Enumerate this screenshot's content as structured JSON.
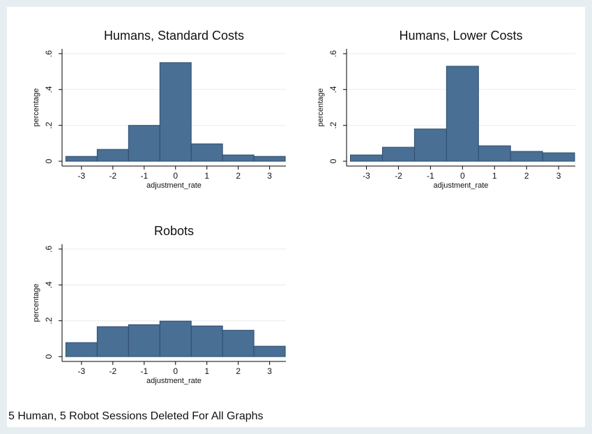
{
  "chart_data": [
    {
      "type": "histogram",
      "title": "Humans, Standard Costs",
      "xlabel": "adjustment_rate",
      "ylabel": "percentage",
      "bins": [
        -3.5,
        -2.5,
        -1.5,
        -0.5,
        0.5,
        1.5,
        2.5,
        3.5
      ],
      "counts": [
        0.027,
        0.066,
        0.2,
        0.55,
        0.097,
        0.035,
        0.027
      ],
      "color": "#4a6f94",
      "edgecolor": "#2c4c6e",
      "xlim": [
        -3.62,
        3.52
      ],
      "xticks": [
        -3,
        -2,
        -1,
        0,
        1,
        2,
        3
      ],
      "ylim": [
        -0.027,
        0.627
      ],
      "yticks": [
        0,
        {
          "value": 0.2,
          "label": ".2"
        },
        {
          "value": 0.4,
          "label": ".4"
        },
        {
          "value": 0.6,
          "label": ".6"
        }
      ],
      "grid": true
    },
    {
      "type": "histogram",
      "title": "Humans, Lower Costs",
      "xlabel": "adjustment_rate",
      "ylabel": "percentage",
      "bins": [
        -3.5,
        -2.5,
        -1.5,
        -0.5,
        0.5,
        1.5,
        2.5,
        3.5
      ],
      "counts": [
        0.035,
        0.078,
        0.18,
        0.53,
        0.086,
        0.055,
        0.047
      ],
      "color": "#4a6f94",
      "edgecolor": "#2c4c6e",
      "xlim": [
        -3.62,
        3.52
      ],
      "xticks": [
        -3,
        -2,
        -1,
        0,
        1,
        2,
        3
      ],
      "ylim": [
        -0.027,
        0.627
      ],
      "yticks": [
        0,
        {
          "value": 0.2,
          "label": ".2"
        },
        {
          "value": 0.4,
          "label": ".4"
        },
        {
          "value": 0.6,
          "label": ".6"
        }
      ],
      "grid": true
    },
    {
      "type": "histogram",
      "title": "Robots",
      "xlabel": "adjustment_rate",
      "ylabel": "percentage",
      "bins": [
        -3.5,
        -2.5,
        -1.5,
        -0.5,
        0.5,
        1.5,
        2.5,
        3.5
      ],
      "counts": [
        0.078,
        0.167,
        0.178,
        0.198,
        0.171,
        0.147,
        0.058
      ],
      "color": "#4a6f94",
      "edgecolor": "#2c4c6e",
      "xlim": [
        -3.62,
        3.52
      ],
      "xticks": [
        -3,
        -2,
        -1,
        0,
        1,
        2,
        3
      ],
      "ylim": [
        -0.027,
        0.627
      ],
      "yticks": [
        0,
        {
          "value": 0.2,
          "label": ".2"
        },
        {
          "value": 0.4,
          "label": ".4"
        },
        {
          "value": 0.6,
          "label": ".6"
        }
      ],
      "grid": true
    }
  ],
  "note": "5 Human, 5 Robot Sessions Deleted For All Graphs"
}
